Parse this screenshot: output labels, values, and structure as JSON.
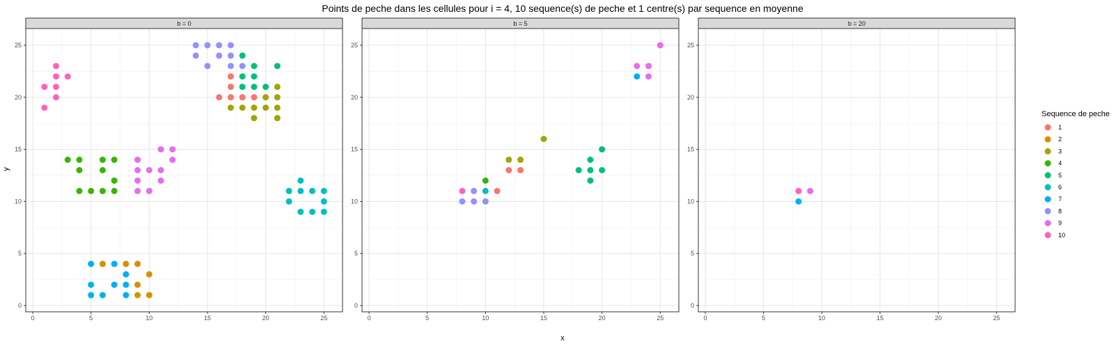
{
  "chart_data": {
    "type": "scatter",
    "title": "Points de peche dans les cellules pour i = 4, 10 sequence(s) de peche et 1 centre(s) par sequence en moyenne",
    "xlabel": "x",
    "ylabel": "y",
    "xlim": [
      -0.6,
      26.6
    ],
    "ylim": [
      -0.6,
      26.6
    ],
    "x_ticks": [
      0,
      5,
      10,
      15,
      20,
      25
    ],
    "y_ticks": [
      0,
      5,
      10,
      15,
      20,
      25
    ],
    "grid": true,
    "legend": {
      "title": "Sequence de peche",
      "placement": "right",
      "entries": [
        {
          "label": "1",
          "color": "#F8766D"
        },
        {
          "label": "2",
          "color": "#D89000"
        },
        {
          "label": "3",
          "color": "#A3A500"
        },
        {
          "label": "4",
          "color": "#39B600"
        },
        {
          "label": "5",
          "color": "#00BF7D"
        },
        {
          "label": "6",
          "color": "#00BFC4"
        },
        {
          "label": "7",
          "color": "#00B0F6"
        },
        {
          "label": "8",
          "color": "#9590FF"
        },
        {
          "label": "9",
          "color": "#E76BF3"
        },
        {
          "label": "10",
          "color": "#FF62BC"
        }
      ]
    },
    "panels": [
      {
        "strip": "b = 0",
        "points": [
          {
            "s": 10,
            "x": 2,
            "y": 23
          },
          {
            "s": 10,
            "x": 2,
            "y": 22
          },
          {
            "s": 10,
            "x": 3,
            "y": 22
          },
          {
            "s": 10,
            "x": 1,
            "y": 21
          },
          {
            "s": 10,
            "x": 2,
            "y": 21
          },
          {
            "s": 10,
            "x": 2,
            "y": 20
          },
          {
            "s": 10,
            "x": 1,
            "y": 19
          },
          {
            "s": 8,
            "x": 14,
            "y": 25
          },
          {
            "s": 8,
            "x": 15,
            "y": 25
          },
          {
            "s": 8,
            "x": 16,
            "y": 25
          },
          {
            "s": 8,
            "x": 17,
            "y": 25
          },
          {
            "s": 8,
            "x": 14,
            "y": 24
          },
          {
            "s": 8,
            "x": 16,
            "y": 24
          },
          {
            "s": 8,
            "x": 17,
            "y": 24
          },
          {
            "s": 8,
            "x": 15,
            "y": 23
          },
          {
            "s": 8,
            "x": 17,
            "y": 23
          },
          {
            "s": 8,
            "x": 18,
            "y": 23
          },
          {
            "s": 5,
            "x": 18,
            "y": 24
          },
          {
            "s": 5,
            "x": 19,
            "y": 23
          },
          {
            "s": 5,
            "x": 21,
            "y": 23
          },
          {
            "s": 5,
            "x": 18,
            "y": 22
          },
          {
            "s": 5,
            "x": 19,
            "y": 22
          },
          {
            "s": 5,
            "x": 18,
            "y": 21
          },
          {
            "s": 5,
            "x": 19,
            "y": 21
          },
          {
            "s": 5,
            "x": 20,
            "y": 21
          },
          {
            "s": 1,
            "x": 17,
            "y": 22
          },
          {
            "s": 1,
            "x": 17,
            "y": 21
          },
          {
            "s": 1,
            "x": 16,
            "y": 20
          },
          {
            "s": 1,
            "x": 17,
            "y": 20
          },
          {
            "s": 1,
            "x": 18,
            "y": 20
          },
          {
            "s": 1,
            "x": 19,
            "y": 20
          },
          {
            "s": 3,
            "x": 21,
            "y": 21
          },
          {
            "s": 3,
            "x": 20,
            "y": 20
          },
          {
            "s": 3,
            "x": 21,
            "y": 20
          },
          {
            "s": 3,
            "x": 17,
            "y": 19
          },
          {
            "s": 3,
            "x": 18,
            "y": 19
          },
          {
            "s": 3,
            "x": 19,
            "y": 19
          },
          {
            "s": 3,
            "x": 20,
            "y": 19
          },
          {
            "s": 3,
            "x": 21,
            "y": 19
          },
          {
            "s": 3,
            "x": 19,
            "y": 18
          },
          {
            "s": 3,
            "x": 21,
            "y": 18
          },
          {
            "s": 4,
            "x": 3,
            "y": 14
          },
          {
            "s": 4,
            "x": 4,
            "y": 14
          },
          {
            "s": 4,
            "x": 6,
            "y": 14
          },
          {
            "s": 4,
            "x": 7,
            "y": 14
          },
          {
            "s": 4,
            "x": 4,
            "y": 13
          },
          {
            "s": 4,
            "x": 6,
            "y": 13
          },
          {
            "s": 4,
            "x": 7,
            "y": 12
          },
          {
            "s": 4,
            "x": 4,
            "y": 11
          },
          {
            "s": 4,
            "x": 5,
            "y": 11
          },
          {
            "s": 4,
            "x": 6,
            "y": 11
          },
          {
            "s": 4,
            "x": 7,
            "y": 11
          },
          {
            "s": 9,
            "x": 11,
            "y": 15
          },
          {
            "s": 9,
            "x": 12,
            "y": 15
          },
          {
            "s": 9,
            "x": 9,
            "y": 14
          },
          {
            "s": 9,
            "x": 12,
            "y": 14
          },
          {
            "s": 9,
            "x": 9,
            "y": 13
          },
          {
            "s": 9,
            "x": 10,
            "y": 13
          },
          {
            "s": 9,
            "x": 11,
            "y": 13
          },
          {
            "s": 9,
            "x": 9,
            "y": 12
          },
          {
            "s": 9,
            "x": 11,
            "y": 12
          },
          {
            "s": 9,
            "x": 9,
            "y": 11
          },
          {
            "s": 9,
            "x": 10,
            "y": 11
          },
          {
            "s": 6,
            "x": 23,
            "y": 12
          },
          {
            "s": 6,
            "x": 22,
            "y": 11
          },
          {
            "s": 6,
            "x": 23,
            "y": 11
          },
          {
            "s": 6,
            "x": 24,
            "y": 11
          },
          {
            "s": 6,
            "x": 25,
            "y": 11
          },
          {
            "s": 6,
            "x": 22,
            "y": 10
          },
          {
            "s": 6,
            "x": 25,
            "y": 10
          },
          {
            "s": 6,
            "x": 23,
            "y": 9
          },
          {
            "s": 6,
            "x": 24,
            "y": 9
          },
          {
            "s": 6,
            "x": 25,
            "y": 9
          },
          {
            "s": 7,
            "x": 5,
            "y": 4
          },
          {
            "s": 7,
            "x": 7,
            "y": 4
          },
          {
            "s": 7,
            "x": 8,
            "y": 3
          },
          {
            "s": 7,
            "x": 5,
            "y": 2
          },
          {
            "s": 7,
            "x": 7,
            "y": 2
          },
          {
            "s": 7,
            "x": 8,
            "y": 2
          },
          {
            "s": 7,
            "x": 5,
            "y": 1
          },
          {
            "s": 7,
            "x": 6,
            "y": 1
          },
          {
            "s": 7,
            "x": 8,
            "y": 1
          },
          {
            "s": 2,
            "x": 6,
            "y": 4
          },
          {
            "s": 2,
            "x": 8,
            "y": 4
          },
          {
            "s": 2,
            "x": 9,
            "y": 4
          },
          {
            "s": 2,
            "x": 10,
            "y": 3
          },
          {
            "s": 2,
            "x": 9,
            "y": 2
          },
          {
            "s": 2,
            "x": 9,
            "y": 1
          },
          {
            "s": 2,
            "x": 10,
            "y": 1
          }
        ]
      },
      {
        "strip": "b = 5",
        "points": [
          {
            "s": 9,
            "x": 23,
            "y": 23
          },
          {
            "s": 9,
            "x": 24,
            "y": 23
          },
          {
            "s": 9,
            "x": 24,
            "y": 22
          },
          {
            "s": 9,
            "x": 25,
            "y": 25
          },
          {
            "s": 7,
            "x": 23,
            "y": 22
          },
          {
            "s": 3,
            "x": 15,
            "y": 16
          },
          {
            "s": 3,
            "x": 12,
            "y": 14
          },
          {
            "s": 3,
            "x": 13,
            "y": 14
          },
          {
            "s": 1,
            "x": 12,
            "y": 13
          },
          {
            "s": 1,
            "x": 13,
            "y": 13
          },
          {
            "s": 1,
            "x": 11,
            "y": 11
          },
          {
            "s": 5,
            "x": 20,
            "y": 15
          },
          {
            "s": 5,
            "x": 19,
            "y": 14
          },
          {
            "s": 5,
            "x": 18,
            "y": 13
          },
          {
            "s": 5,
            "x": 19,
            "y": 13
          },
          {
            "s": 5,
            "x": 20,
            "y": 13
          },
          {
            "s": 5,
            "x": 19,
            "y": 12
          },
          {
            "s": 4,
            "x": 10,
            "y": 12
          },
          {
            "s": 10,
            "x": 8,
            "y": 11
          },
          {
            "s": 8,
            "x": 9,
            "y": 11
          },
          {
            "s": 6,
            "x": 10,
            "y": 11
          },
          {
            "s": 8,
            "x": 8,
            "y": 10
          },
          {
            "s": 8,
            "x": 9,
            "y": 10
          },
          {
            "s": 8,
            "x": 10,
            "y": 10
          }
        ]
      },
      {
        "strip": "b = 20",
        "points": [
          {
            "s": 10,
            "x": 8,
            "y": 11
          },
          {
            "s": 9,
            "x": 9,
            "y": 11
          },
          {
            "s": 7,
            "x": 8,
            "y": 10
          }
        ]
      }
    ]
  }
}
